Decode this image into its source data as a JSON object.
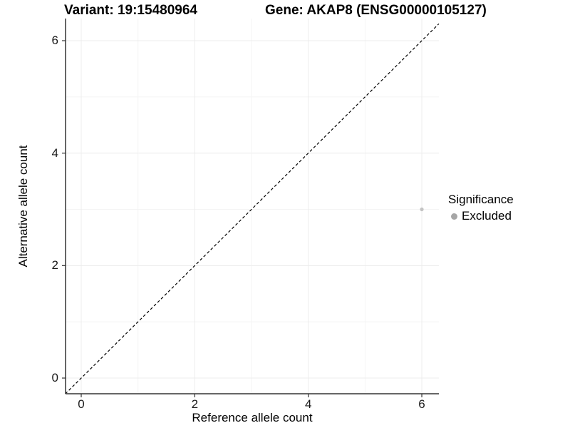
{
  "chart_data": {
    "type": "scatter",
    "title_left": "Variant: 19:15480964",
    "title_right": "Gene: AKAP8 (ENSG00000105127)",
    "xlabel": "Reference allele count",
    "ylabel": "Alternative allele count",
    "xlim": [
      -0.28,
      6.3
    ],
    "ylim": [
      -0.28,
      6.3
    ],
    "x_ticks": [
      0,
      2,
      4,
      6
    ],
    "y_ticks": [
      0,
      2,
      4,
      6
    ],
    "x_minor_ticks": [
      1,
      3,
      5
    ],
    "y_minor_ticks": [
      1,
      3,
      5
    ],
    "grid": "on",
    "identity_line": {
      "style": "dashed",
      "from": -0.28,
      "to": 6.3
    },
    "series": [
      {
        "name": "Excluded",
        "color": "#c3c3c3",
        "points": [
          {
            "x": 6,
            "y": 3
          }
        ]
      }
    ],
    "legend": {
      "position": "right",
      "title": "Significance",
      "entries": [
        {
          "label": "Excluded",
          "marker": "circle-icon",
          "color": "#a6a6a6"
        }
      ]
    }
  },
  "colors": {
    "background": "#ffffff",
    "axis_line": "#333333",
    "tick_text": "#1a1a1a",
    "grid_major": "#ececec",
    "grid_minor": "#f4f4f4",
    "identity_line": "#000000"
  }
}
